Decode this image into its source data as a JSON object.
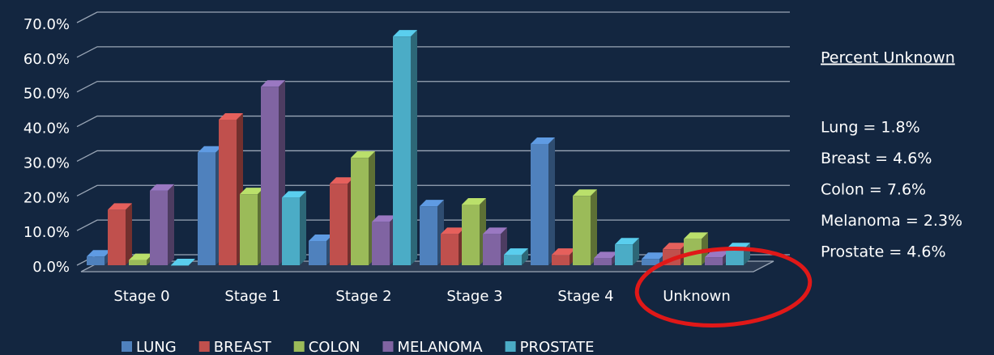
{
  "chart_data": {
    "type": "bar3d",
    "categories": [
      "Stage 0",
      "Stage 1",
      "Stage 2",
      "Stage 3",
      "Stage 4",
      "Unknown"
    ],
    "series": [
      {
        "name": "LUNG",
        "color": "#4f81bd",
        "values": [
          2.5,
          32.5,
          7,
          17,
          35,
          1.8
        ]
      },
      {
        "name": "BREAST",
        "color": "#c0504d",
        "values": [
          16,
          42,
          23.5,
          9,
          3,
          4.6
        ]
      },
      {
        "name": "COLON",
        "color": "#9bbb59",
        "values": [
          1.5,
          20.5,
          31,
          17.5,
          20,
          7.6
        ]
      },
      {
        "name": "MELANOMA",
        "color": "#8064a2",
        "values": [
          21.5,
          51.5,
          12.5,
          9,
          2,
          2.3
        ]
      },
      {
        "name": "PROSTATE",
        "color": "#4bacc6",
        "values": [
          0,
          19.5,
          66,
          3,
          6,
          4.6
        ]
      }
    ],
    "ylim": [
      0,
      70
    ],
    "yticks": [
      {
        "value": 0,
        "label": "0.0%"
      },
      {
        "value": 10,
        "label": "10.0%"
      },
      {
        "value": 20,
        "label": "20.0%"
      },
      {
        "value": 30,
        "label": "30.0%"
      },
      {
        "value": 40,
        "label": "40.0%"
      },
      {
        "value": 50,
        "label": "50.0%"
      },
      {
        "value": 60,
        "label": "60.0%"
      },
      {
        "value": 70,
        "label": "70.0%"
      }
    ],
    "grid": true,
    "legend": "bottom",
    "annotation": {
      "title": "Percent Unknown",
      "lines": [
        "Lung = 1.8%",
        "Breast = 4.6%",
        "Colon = 7.6%",
        "Melanoma = 2.3%",
        "Prostate = 4.6%"
      ]
    }
  }
}
